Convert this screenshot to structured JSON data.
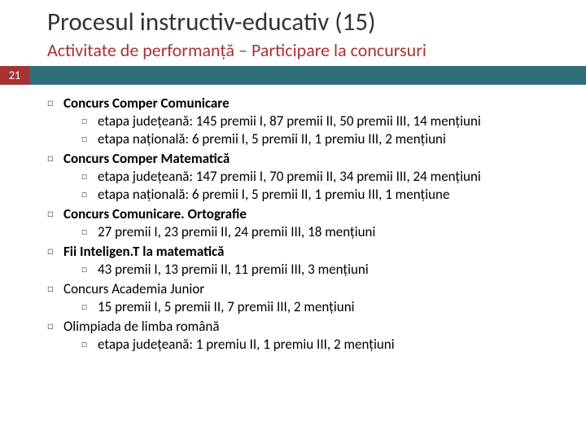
{
  "title": "Procesul instructiv-educativ (15)",
  "subtitle": "Activitate de performanță – Participare la concursuri",
  "page_number": "21",
  "colors": {
    "accent_red": "#a83232",
    "accent_teal": "#2f6f7a",
    "title_color": "#333333",
    "text_color": "#000000",
    "marker_color": "#666666",
    "background": "#ffffff"
  },
  "typography": {
    "title_fontsize": 31,
    "subtitle_fontsize": 22,
    "body_fontsize": 17
  },
  "bullets": {
    "top_marker": "□",
    "sub_marker": "□"
  },
  "items": [
    {
      "label": "Concurs Comper Comunicare",
      "bold": true,
      "subs": [
        "etapa județeană: 145 premii I, 87 premii II, 50 premii III, 14 mențiuni",
        "etapa națională: 6 premii I, 5 premii II, 1 premiu III, 2 mențiuni"
      ]
    },
    {
      "label": "Concurs Comper Matematică",
      "bold": true,
      "subs": [
        "etapa județeană: 147 premii I, 70 premii II, 34 premii III, 24 mențiuni",
        "etapa națională: 6 premii I, 5 premii II, 1 premiu III, 1 mențiune"
      ]
    },
    {
      "label": "Concurs Comunicare. Ortografie",
      "bold": true,
      "subs": [
        "27 premii I, 23 premii II, 24 premii III, 18 mențiuni"
      ]
    },
    {
      "label": "Fii Inteligen.T la matematică",
      "bold": true,
      "subs": [
        "43 premii I, 13 premii II, 11 premii III, 3 mențiuni"
      ]
    },
    {
      "label": "Concurs Academia Junior",
      "bold": false,
      "subs": [
        "15 premii I, 5 premii II, 7 premii III, 2 mențiuni"
      ]
    },
    {
      "label": "Olimpiada de limba română",
      "bold": false,
      "subs": [
        "etapa județeană: 1 premiu II, 1 premiu III, 2 mențiuni"
      ]
    }
  ]
}
